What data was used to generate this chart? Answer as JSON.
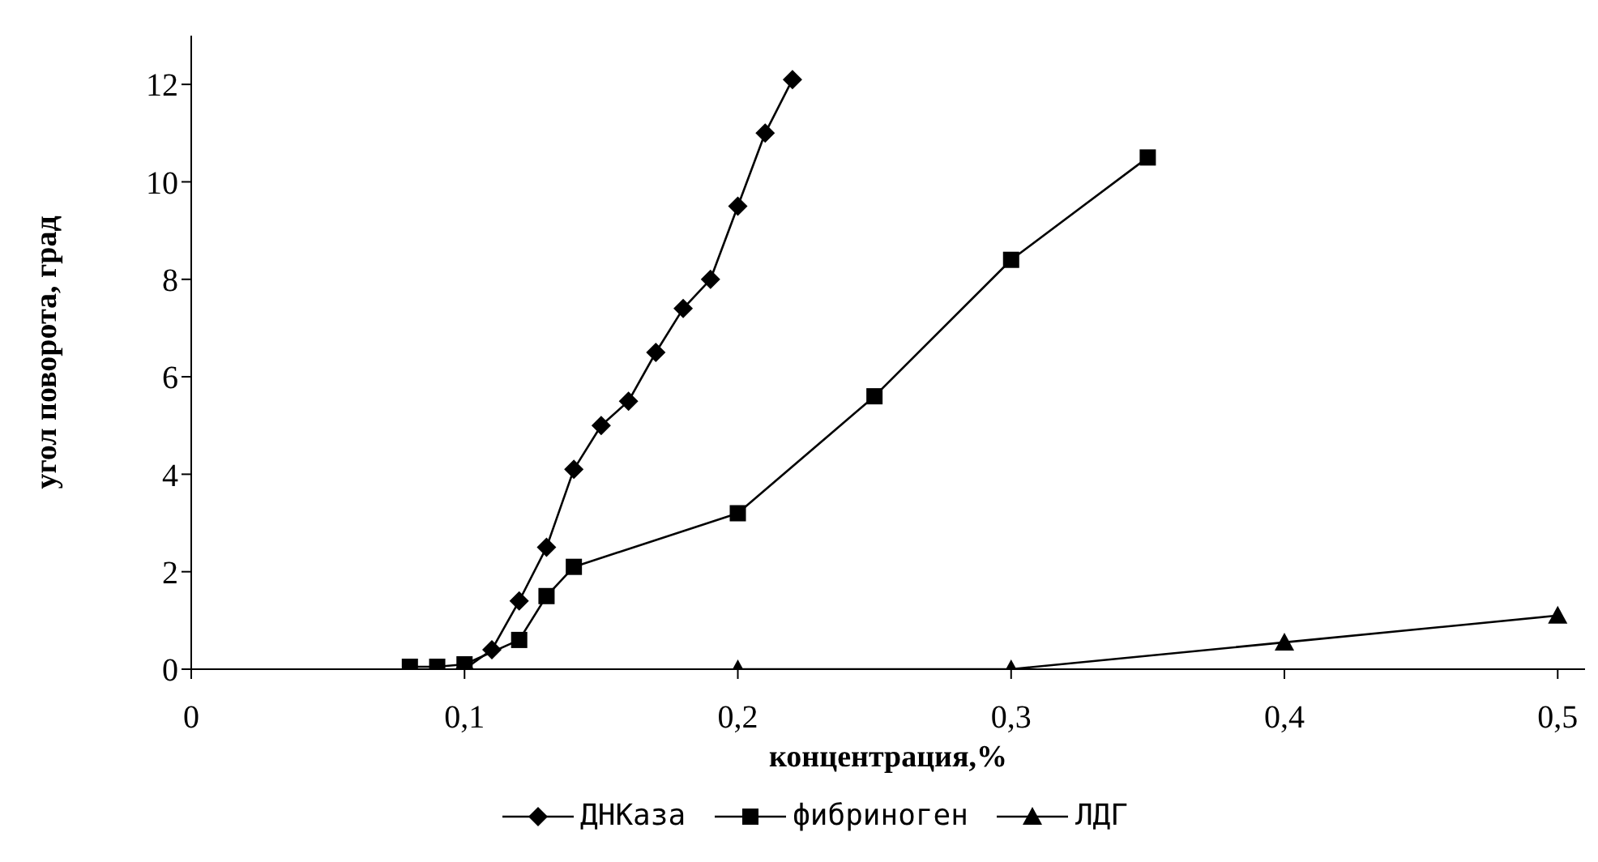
{
  "chart_data": {
    "type": "line",
    "xlabel": "концентрация,%",
    "ylabel": "угол поворота, град",
    "xlim": [
      0,
      0.51
    ],
    "xticks": [
      0,
      {
        "value": 0.1,
        "label": "0,1"
      },
      {
        "value": 0.2,
        "label": "0,2"
      },
      {
        "value": 0.3,
        "label": "0,3"
      },
      {
        "value": 0.4,
        "label": "0,4"
      },
      {
        "value": 0.5,
        "label": "0,5"
      }
    ],
    "ylim": [
      0,
      13
    ],
    "yticks": [
      0,
      2,
      4,
      6,
      8,
      10,
      12
    ],
    "grid": false,
    "legend": "bottom",
    "line_style": "solid",
    "series": [
      {
        "name": "ДНКаза",
        "color": "#000000",
        "marker": "diamond",
        "x": [
          0.1,
          0.11,
          0.12,
          0.13,
          0.14,
          0.15,
          0.16,
          0.17,
          0.18,
          0.19,
          0.2,
          0.21,
          0.22
        ],
        "values": [
          0,
          0.4,
          1.4,
          2.5,
          4.1,
          5,
          5.5,
          6.5,
          7.4,
          8,
          9.5,
          11,
          12.1
        ]
      },
      {
        "name": "фибриноген",
        "color": "#000000",
        "marker": "square",
        "x": [
          0.08,
          0.09,
          0.1,
          0.12,
          0.13,
          0.14,
          0.2,
          0.25,
          0.3,
          0.35
        ],
        "values": [
          0.05,
          0.05,
          0.1,
          0.6,
          1.5,
          2.1,
          3.2,
          5.6,
          8.4,
          10.5
        ]
      },
      {
        "name": "ЛДГ",
        "color": "#000000",
        "marker": "triangle",
        "x": [
          0.2,
          0.3,
          0.4,
          0.5
        ],
        "values": [
          0,
          0,
          0.55,
          1.1
        ]
      }
    ]
  }
}
